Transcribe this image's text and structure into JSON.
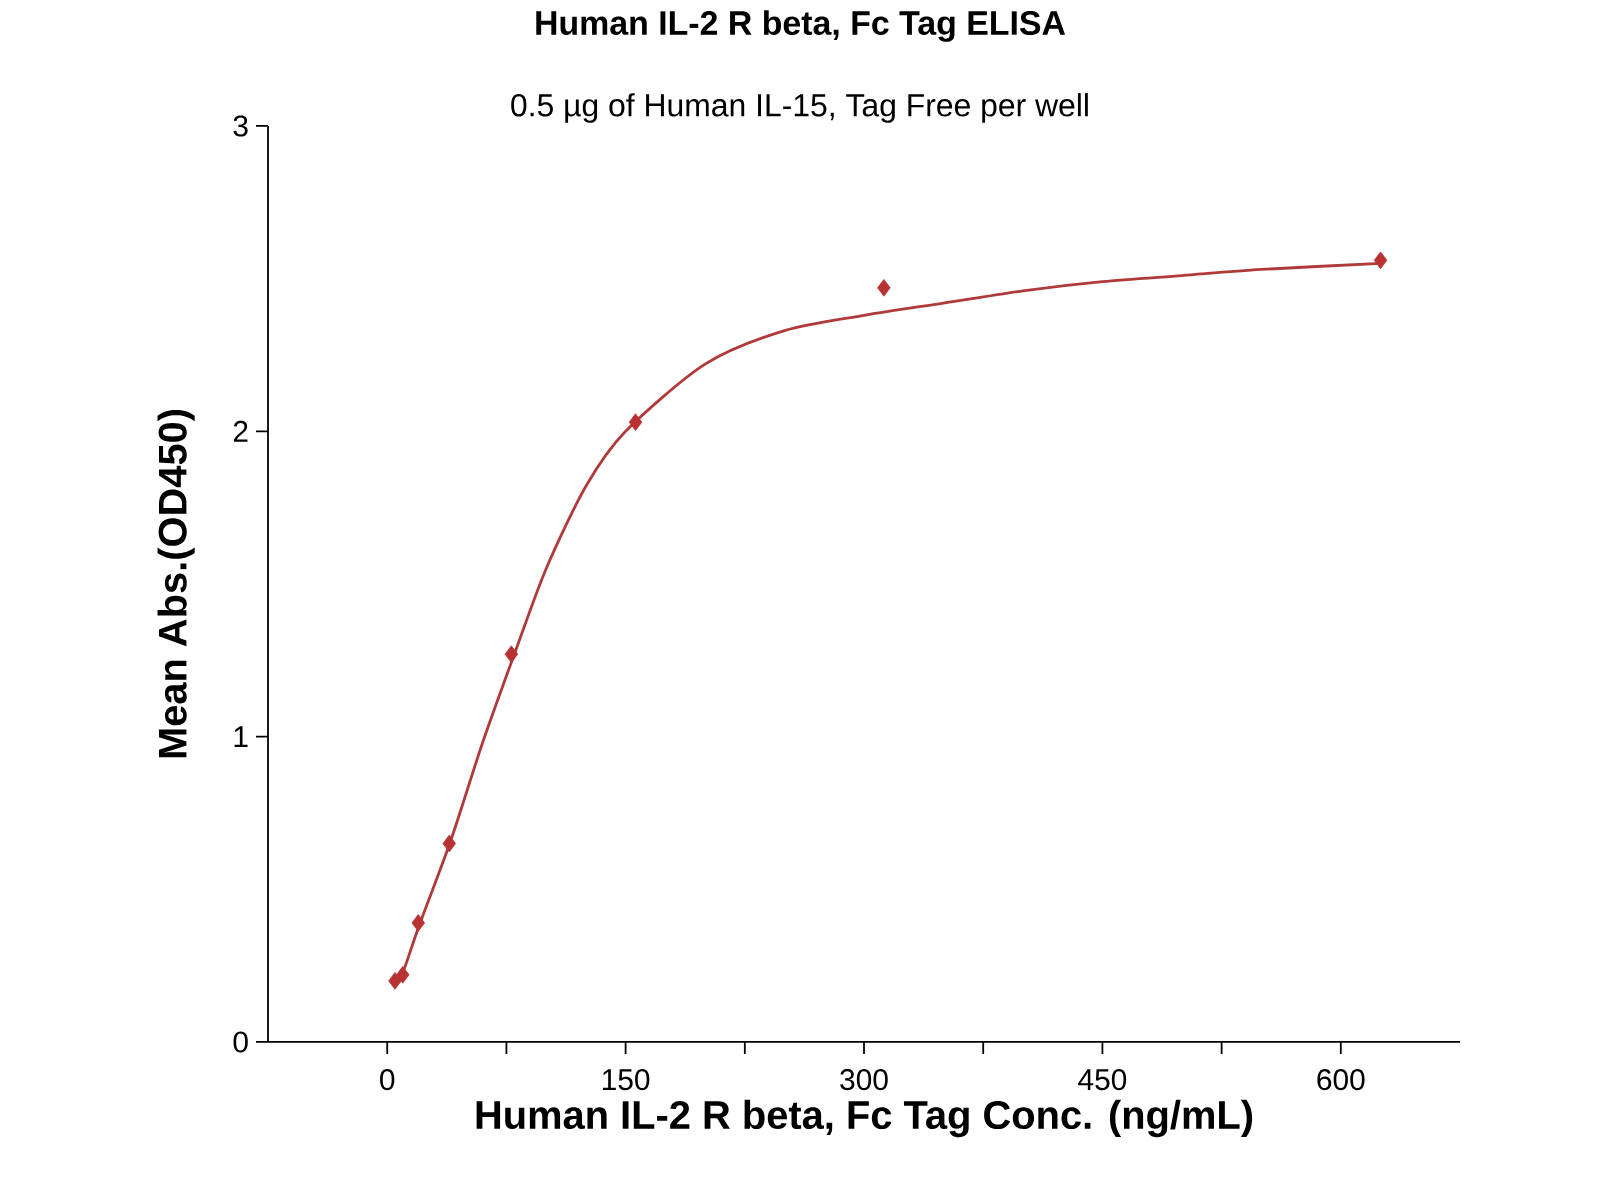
{
  "chart_data": {
    "type": "scatter",
    "title": "Human IL-2 R beta, Fc Tag ELISA",
    "subtitle": "0.5 µg of Human IL-15, Tag Free per well",
    "xlabel": "Human IL-2 R beta, Fc Tag Conc. (ng/mL)",
    "ylabel": "Mean Abs.(OD450)",
    "xlim": [
      -75,
      675
    ],
    "ylim": [
      0,
      3
    ],
    "xticks": [
      0,
      150,
      300,
      450,
      600
    ],
    "yticks": [
      0,
      1,
      2,
      3
    ],
    "series": [
      {
        "marker": "diamond",
        "color": "#b83232",
        "x": [
          4.88,
          9.77,
          19.53,
          39.06,
          78.13,
          156.25,
          312.5,
          625
        ],
        "values": [
          0.2,
          0.22,
          0.39,
          0.65,
          1.27,
          2.03,
          2.47,
          2.56
        ]
      },
      {
        "type": "line",
        "marker": "none",
        "line_style": "solid",
        "color": "#b03a3a",
        "x": [
          4.88,
          10,
          20,
          40,
          60,
          80,
          100,
          125,
          150,
          200,
          250,
          300,
          350,
          400,
          450,
          500,
          550,
          625
        ],
        "values": [
          0.2,
          0.23,
          0.38,
          0.66,
          0.98,
          1.27,
          1.55,
          1.82,
          2.0,
          2.22,
          2.33,
          2.38,
          2.42,
          2.46,
          2.49,
          2.51,
          2.53,
          2.55
        ]
      }
    ]
  }
}
